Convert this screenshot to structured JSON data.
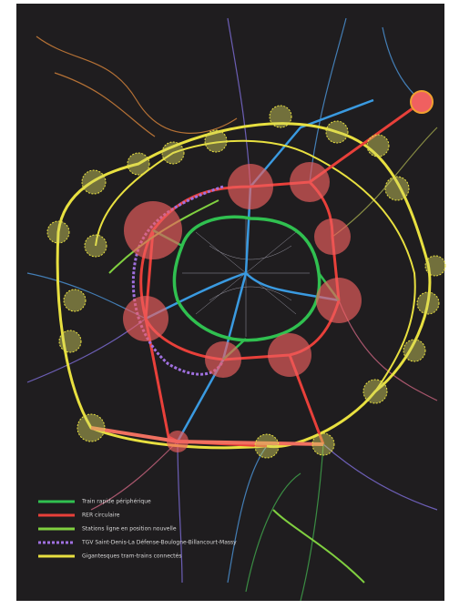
{
  "legend": {
    "items": [
      {
        "label": "Train rapide périphérique"
      },
      {
        "label": "RER circulaire"
      },
      {
        "label": "Stations ligne en position nouvelle"
      },
      {
        "label": "TGV Saint-Denis-La Défense-Boulogne-Billancourt-Massy"
      },
      {
        "label": "Gigantesques tram-trains connectés"
      }
    ]
  }
}
